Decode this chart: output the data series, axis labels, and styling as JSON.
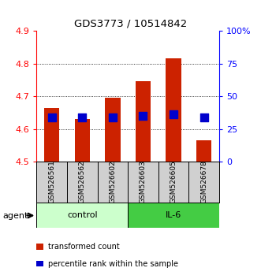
{
  "title": "GDS3773 / 10514842",
  "samples": [
    "GSM526561",
    "GSM526562",
    "GSM526602",
    "GSM526603",
    "GSM526605",
    "GSM526678"
  ],
  "red_values": [
    4.665,
    4.63,
    4.695,
    4.745,
    4.815,
    4.565
  ],
  "blue_values": [
    4.635,
    4.635,
    4.635,
    4.64,
    4.645,
    4.635
  ],
  "y_min": 4.5,
  "y_max": 4.9,
  "y_ticks_left": [
    4.5,
    4.6,
    4.7,
    4.8,
    4.9
  ],
  "y_ticks_right": [
    0,
    25,
    50,
    75,
    100
  ],
  "bar_color": "#cc2200",
  "blue_color": "#0000cc",
  "control_color": "#ccffcc",
  "il6_color": "#44cc44",
  "sample_bg_color": "#d0d0d0",
  "group_labels": [
    "control",
    "IL-6"
  ],
  "legend_items": [
    "transformed count",
    "percentile rank within the sample"
  ],
  "bar_width": 0.5,
  "blue_square_size": 60
}
